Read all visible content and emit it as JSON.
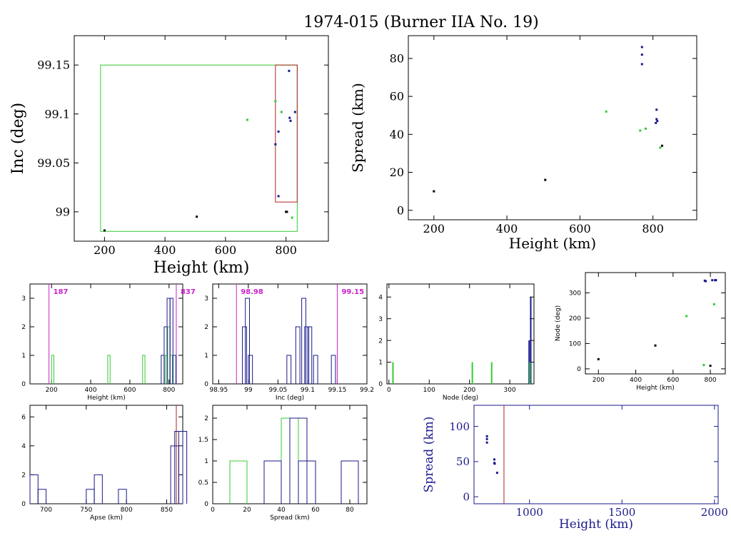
{
  "title": "1974-015 (Burner IIA No. 19)",
  "colors": {
    "black": "#000000",
    "blue": "#1a1a8c",
    "green": "#33cc33",
    "red": "#b22222",
    "magenta": "#cc22cc"
  },
  "chart_data": [
    {
      "id": "inc-height",
      "type": "scatter",
      "xlabel": "Height (km)",
      "ylabel": "Inc (deg)",
      "xlim": [
        100,
        940
      ],
      "ylim": [
        98.97,
        99.18
      ],
      "xticks": [
        200,
        400,
        600,
        800
      ],
      "yticks": [
        99,
        99.05,
        99.1,
        99.15
      ],
      "ytick_labels": [
        "99",
        "99.05",
        "99.1",
        "99.15"
      ],
      "boxes": [
        {
          "color": "green",
          "x": [
            187,
            837
          ],
          "y": [
            98.98,
            99.15
          ]
        },
        {
          "color": "red",
          "x": [
            765,
            837
          ],
          "y": [
            99.01,
            99.15
          ]
        }
      ],
      "series": [
        {
          "color": "black",
          "points": [
            [
              200,
              98.981
            ],
            [
              505,
              98.995
            ],
            [
              800,
              99.0
            ],
            [
              803,
              99.0
            ]
          ]
        },
        {
          "color": "green",
          "points": [
            [
              672,
              99.094
            ],
            [
              765,
              99.113
            ],
            [
              785,
              99.102
            ],
            [
              820,
              98.994
            ]
          ]
        },
        {
          "color": "blue",
          "points": [
            [
              810,
              99.144
            ],
            [
              830,
              99.102
            ],
            [
              812,
              99.096
            ],
            [
              815,
              99.093
            ],
            [
              775,
              99.082
            ],
            [
              765,
              99.069
            ],
            [
              775,
              99.016
            ]
          ]
        }
      ]
    },
    {
      "id": "spread-height",
      "type": "scatter",
      "xlabel": "Height (km)",
      "ylabel": "Spread (km)",
      "xlim": [
        130,
        920
      ],
      "ylim": [
        -5,
        92
      ],
      "xticks": [
        200,
        400,
        600,
        800
      ],
      "yticks": [
        0,
        20,
        40,
        60,
        80
      ],
      "ytick_labels": [
        "0",
        "20",
        "40",
        "60",
        "80"
      ],
      "series": [
        {
          "color": "black",
          "points": [
            [
              200,
              10
            ],
            [
              505,
              16
            ],
            [
              825,
              34
            ]
          ]
        },
        {
          "color": "green",
          "points": [
            [
              672,
              52
            ],
            [
              765,
              42
            ],
            [
              780,
              43
            ],
            [
              820,
              33
            ]
          ]
        },
        {
          "color": "blue",
          "points": [
            [
              770,
              86
            ],
            [
              770,
              82
            ],
            [
              770,
              77
            ],
            [
              810,
              53
            ],
            [
              810,
              48
            ],
            [
              812,
              47
            ],
            [
              808,
              46
            ]
          ]
        }
      ]
    },
    {
      "id": "hist-height",
      "type": "histogram",
      "xlabel": "Height (km)",
      "xlim": [
        90,
        870
      ],
      "ylim": [
        0,
        3.5
      ],
      "xticks": [
        200,
        400,
        600,
        800
      ],
      "yticks": [
        0,
        1,
        2,
        3
      ],
      "ytick_labels": [
        "0",
        "1",
        "2",
        "3"
      ],
      "vlines": [
        {
          "x": 187,
          "color": "magenta",
          "label": "187"
        },
        {
          "x": 837,
          "color": "magenta",
          "label": "837"
        }
      ],
      "series": [
        {
          "color": "green",
          "bins": [
            [
              200,
              1
            ],
            [
              487,
              1
            ],
            [
              665,
              1
            ],
            [
              780,
              1
            ],
            [
              793,
              2
            ],
            [
              805,
              1
            ]
          ],
          "width": 12
        },
        {
          "color": "blue",
          "bins": [
            [
              760,
              1
            ],
            [
              775,
              2
            ],
            [
              790,
              3
            ],
            [
              805,
              3
            ],
            [
              820,
              1
            ]
          ],
          "width": 15
        }
      ]
    },
    {
      "id": "hist-inc",
      "type": "histogram",
      "xlabel": "Inc (deg)",
      "xlim": [
        98.94,
        99.2
      ],
      "ylim": [
        0,
        3.5
      ],
      "xticks": [
        98.95,
        99,
        99.05,
        99.1,
        99.15,
        99.2
      ],
      "yticks": [
        0,
        1,
        2,
        3
      ],
      "xtick_labels": [
        "98.95",
        "99",
        "99.05",
        "99.1",
        "99.15",
        "99.2"
      ],
      "ytick_labels": [
        "0",
        "1",
        "2",
        "3"
      ],
      "vlines": [
        {
          "x": 98.98,
          "color": "magenta",
          "label": "98.98"
        },
        {
          "x": 99.15,
          "color": "magenta",
          "label": "99.15"
        }
      ],
      "series": [
        {
          "color": "blue",
          "bins": [
            [
              98.99,
              2
            ],
            [
              98.995,
              3
            ],
            [
              99.0,
              1
            ],
            [
              99.065,
              1
            ],
            [
              99.08,
              2
            ],
            [
              99.09,
              3
            ],
            [
              99.095,
              2
            ],
            [
              99.1,
              2
            ],
            [
              99.11,
              1
            ],
            [
              99.14,
              1
            ]
          ],
          "width": 0.007
        }
      ]
    },
    {
      "id": "hist-node",
      "type": "histogram",
      "xlabel": "Node (deg)",
      "xlim": [
        -5,
        360
      ],
      "ylim": [
        0,
        4.6
      ],
      "xticks": [
        0,
        100,
        200,
        300
      ],
      "yticks": [
        0,
        1,
        2,
        3,
        4
      ],
      "ytick_labels": [
        "0",
        "1",
        "2",
        "3",
        "4"
      ],
      "lines": [
        {
          "color": "green",
          "x": 10,
          "h": 1
        },
        {
          "color": "green",
          "x": 207,
          "h": 1
        },
        {
          "color": "green",
          "x": 255,
          "h": 1
        },
        {
          "color": "blue",
          "x": 348,
          "h": 2
        },
        {
          "color": "blue",
          "x": 352,
          "h": 4
        },
        {
          "color": "green",
          "x": 350,
          "h": 1
        }
      ]
    },
    {
      "id": "node-height",
      "type": "scatter",
      "xlabel": "Height (km)",
      "ylabel": "Node (deg)",
      "xlim": [
        130,
        880
      ],
      "ylim": [
        -20,
        380
      ],
      "xticks": [
        200,
        400,
        600,
        800
      ],
      "yticks": [
        0,
        100,
        200,
        300
      ],
      "ytick_labels": [
        "0",
        "100",
        "200",
        "300"
      ],
      "series": [
        {
          "color": "black",
          "points": [
            [
              200,
              38
            ],
            [
              505,
              92
            ],
            [
              800,
              12
            ]
          ]
        },
        {
          "color": "green",
          "points": [
            [
              672,
              208
            ],
            [
              765,
              15
            ],
            [
              820,
              255
            ]
          ]
        },
        {
          "color": "blue",
          "points": [
            [
              770,
              348
            ],
            [
              775,
              346
            ],
            [
              810,
              350
            ],
            [
              825,
              350
            ],
            [
              830,
              350
            ]
          ]
        }
      ]
    },
    {
      "id": "hist-apse",
      "type": "histogram",
      "xlabel": "Apse (km)",
      "xlim": [
        680,
        870
      ],
      "ylim": [
        0,
        6.8
      ],
      "xticks": [
        700,
        750,
        800,
        850
      ],
      "yticks": [
        0,
        2,
        4,
        6
      ],
      "ytick_labels": [
        "0",
        "2",
        "4",
        "6"
      ],
      "vlines": [
        {
          "x": 862,
          "color": "red"
        }
      ],
      "series": [
        {
          "color": "blue",
          "bins": [
            [
              680,
              2
            ],
            [
              690,
              1
            ],
            [
              750,
              1
            ],
            [
              760,
              2
            ],
            [
              790,
              1
            ],
            [
              855,
              4
            ],
            [
              860,
              5
            ],
            [
              865,
              5
            ]
          ],
          "width": 10
        }
      ]
    },
    {
      "id": "hist-spread",
      "type": "histogram",
      "xlabel": "Spread (km)",
      "xlim": [
        0,
        90
      ],
      "ylim": [
        0,
        2.3
      ],
      "xticks": [
        0,
        20,
        40,
        60,
        80
      ],
      "yticks": [
        0,
        0.5,
        1,
        1.5,
        2
      ],
      "ytick_labels": [
        "0",
        "0.5",
        "1",
        "1.5",
        "2"
      ],
      "series": [
        {
          "color": "green",
          "bins": [
            [
              10,
              1
            ],
            [
              40,
              2
            ],
            [
              50,
              1
            ]
          ],
          "width": 10
        },
        {
          "color": "blue",
          "bins": [
            [
              30,
              1
            ],
            [
              45,
              2
            ],
            [
              50,
              1
            ],
            [
              75,
              1
            ]
          ],
          "width": 10
        }
      ]
    },
    {
      "id": "spread-height-wide",
      "type": "scatter",
      "xlabel": "Height (km)",
      "ylabel": "Spread (km)",
      "xlim": [
        700,
        2020
      ],
      "ylim": [
        -10,
        130
      ],
      "xticks": [
        1000,
        1500,
        2000
      ],
      "yticks": [
        0,
        50,
        100
      ],
      "ytick_labels": [
        "0",
        "50",
        "100"
      ],
      "vlines": [
        {
          "x": 862,
          "color": "red"
        }
      ],
      "series": [
        {
          "color": "blue",
          "points": [
            [
              770,
              86
            ],
            [
              770,
              82
            ],
            [
              770,
              77
            ],
            [
              810,
              53
            ],
            [
              810,
              48
            ],
            [
              812,
              47
            ],
            [
              825,
              34
            ]
          ]
        }
      ]
    }
  ]
}
